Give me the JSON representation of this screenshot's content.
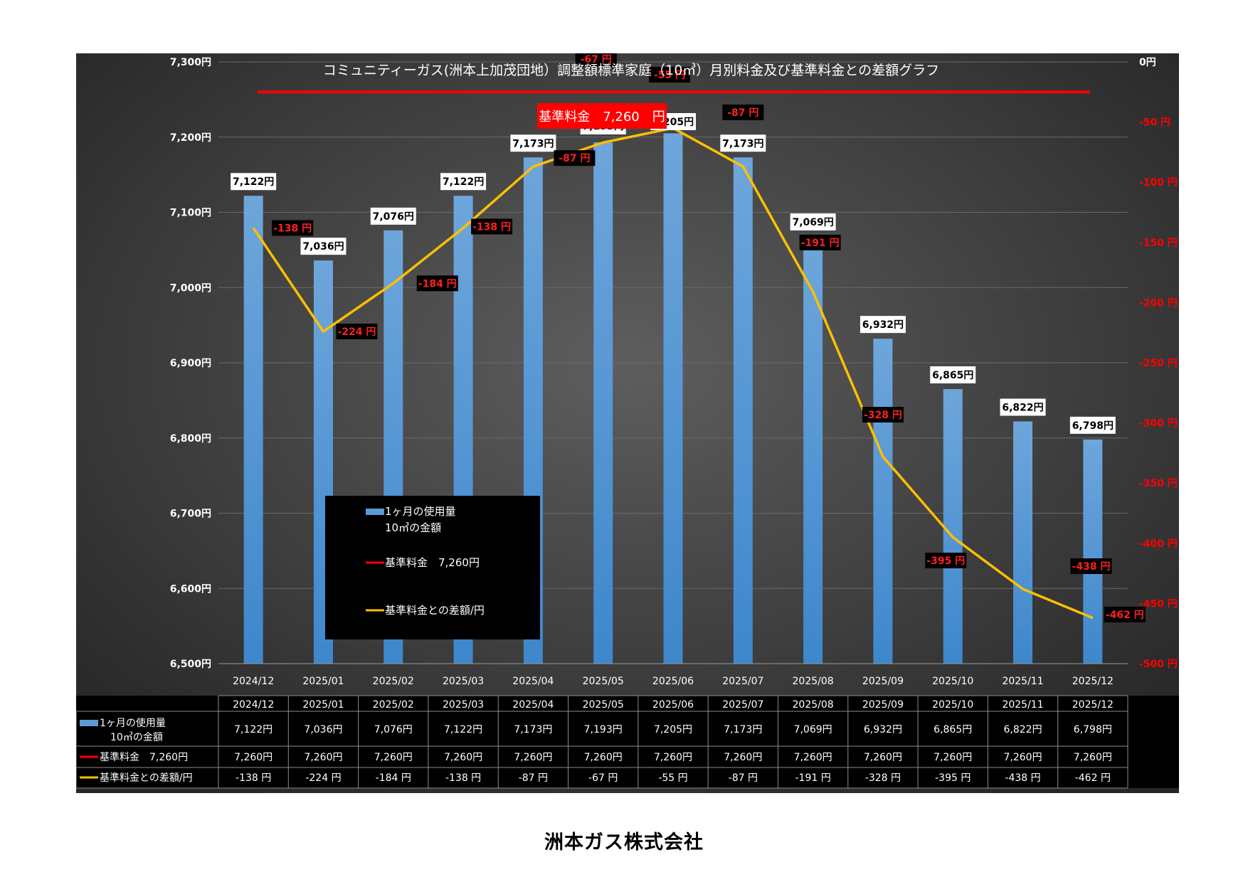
{
  "chart_data": {
    "type": "bar",
    "title": "コミュニティーガス(洲本上加茂団地）調整額標準家庭（10㎥）月別料金及び基準料金との差額グラフ",
    "categories": [
      "2024/12",
      "2025/01",
      "2025/02",
      "2025/03",
      "2025/04",
      "2025/05",
      "2025/06",
      "2025/07",
      "2025/08",
      "2025/09",
      "2025/10",
      "2025/11",
      "2025/12"
    ],
    "series": [
      {
        "name": "1ヶ月の使用量10㎥の金額",
        "legend_lines": [
          "1ヶ月の使用量",
          "10㎥の金額"
        ],
        "type": "bar",
        "axis": "left",
        "values": [
          7122,
          7036,
          7076,
          7122,
          7173,
          7193,
          7205,
          7173,
          7069,
          6932,
          6865,
          6822,
          6798
        ],
        "labels": [
          "7,122円",
          "7,036円",
          "7,076円",
          "7,122円",
          "7,173円",
          "7,193円",
          "7,205円",
          "7,173円",
          "7,069円",
          "6,932円",
          "6,865円",
          "6,822円",
          "6,798円"
        ],
        "color": "#5b9bd5"
      },
      {
        "name": "基準料金　7,260円",
        "type": "line",
        "axis": "left",
        "values": [
          7260,
          7260,
          7260,
          7260,
          7260,
          7260,
          7260,
          7260,
          7260,
          7260,
          7260,
          7260,
          7260
        ],
        "labels": [
          "7,260円",
          "7,260円",
          "7,260円",
          "7,260円",
          "7,260円",
          "7,260円",
          "7,260円",
          "7,260円",
          "7,260円",
          "7,260円",
          "7,260円",
          "7,260円",
          "7,260円"
        ],
        "color": "#ff0000"
      },
      {
        "name": "基準料金との差額/円",
        "type": "line",
        "axis": "right",
        "values": [
          -138,
          -224,
          -184,
          -138,
          -87,
          -67,
          -55,
          -87,
          -191,
          -328,
          -395,
          -438,
          -462
        ],
        "labels": [
          "-138 円",
          "-224 円",
          "-184 円",
          "-138 円",
          "-87 円",
          "-67 円",
          "-55 円",
          "-87 円",
          "-191 円",
          "-328 円",
          "-395 円",
          "-438 円",
          "-462 円"
        ],
        "color": "#ffc000"
      }
    ],
    "y_left": {
      "range": [
        6500,
        7300
      ],
      "ticks": [
        "6,500円",
        "6,600円",
        "6,700円",
        "6,800円",
        "6,900円",
        "7,000円",
        "7,100円",
        "7,200円",
        "7,300円"
      ]
    },
    "y_right": {
      "range": [
        -500,
        0
      ],
      "ticks": [
        "-500 円",
        "-450 円",
        "-400 円",
        "-350 円",
        "-300 円",
        "-250 円",
        "-200 円",
        "-150 円",
        "-100 円",
        "-50 円",
        "0円"
      ],
      "color": "#ff0000"
    },
    "baseline_callout": "基準料金　7,260　円",
    "data_table": true,
    "legend_position": "center-left",
    "grid": true
  },
  "footer": {
    "company": "洲本ガス株式会社"
  },
  "colors": {
    "background": "#000000",
    "plot_dark": "#262626",
    "plot_light": "#595959",
    "bar": "#5b9bd5",
    "baseline": "#ff0000",
    "diff_line": "#ffc000"
  }
}
